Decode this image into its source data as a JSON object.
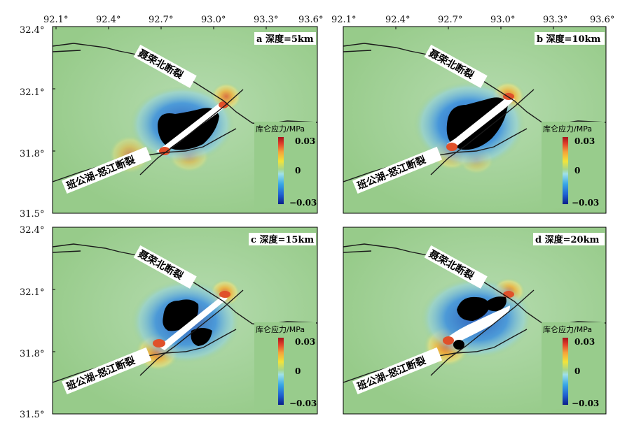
{
  "axes": {
    "x_ticks": [
      "92.1°",
      "92.4°",
      "92.7°",
      "93.0°",
      "93.3°",
      "93.6°"
    ],
    "y_ticks": [
      "32.4°",
      "32.1°",
      "31.8°",
      "31.5°"
    ]
  },
  "fault_labels": {
    "north": "聂荣北断裂",
    "south": "班公湖-怒江断裂"
  },
  "colorbar": {
    "title": "库仑应力/MPa",
    "max_label": "0.03",
    "mid_label": "0",
    "min_label": "−0.03",
    "colors": [
      "#0b1f8a",
      "#1e5fd0",
      "#39a7e6",
      "#9fe0e8",
      "#a8d68a",
      "#f2e43a",
      "#f5a23a",
      "#e0402a",
      "#a8121a"
    ]
  },
  "panels": [
    {
      "id": "a",
      "title": "a 深度=5km"
    },
    {
      "id": "b",
      "title": "b 深度=10km"
    },
    {
      "id": "c",
      "title": "c 深度=15km"
    },
    {
      "id": "d",
      "title": "d 深度=20km"
    }
  ],
  "colors": {
    "background_field": "#98cc8c",
    "positive": "#f2c232",
    "negative_strong": "#000000",
    "negative": "#1e63c8",
    "fault_line": "#1a1a1a"
  }
}
